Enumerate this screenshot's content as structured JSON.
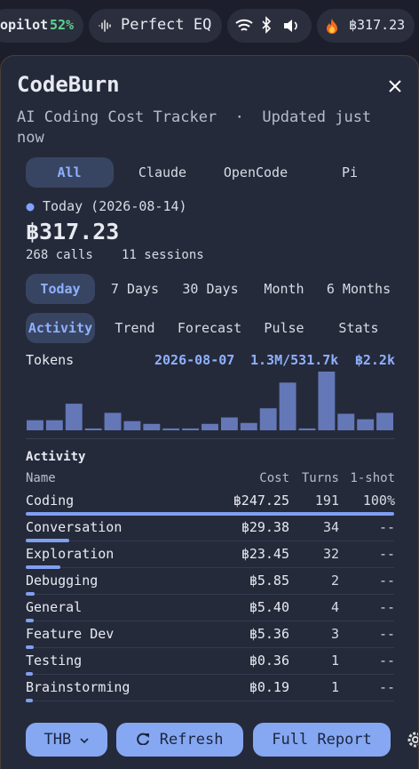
{
  "status_bar": {
    "app": "opilot",
    "app_percent": "52%",
    "eq": "Perfect EQ",
    "spend": "฿317.23"
  },
  "panel": {
    "title": "CodeBurn",
    "subtitle": "AI Coding Cost Tracker  ·  Updated just now",
    "providers": [
      "All",
      "Claude",
      "OpenCode",
      "Pi"
    ],
    "selected_provider": 0,
    "day": "Today (2026-08-14)",
    "total": "฿317.23",
    "calls": "268 calls",
    "sessions": "11 sessions",
    "periods": [
      "Today",
      "7 Days",
      "30 Days",
      "Month",
      "6 Months"
    ],
    "selected_period": 0,
    "views": [
      "Activity",
      "Trend",
      "Forecast",
      "Pulse",
      "Stats"
    ],
    "selected_view": 0,
    "tokens": {
      "label": "Tokens",
      "date": "2026-08-07",
      "count": "1.3M/531.7k",
      "cost": "฿2.2k",
      "bars": [
        11,
        11,
        29,
        2,
        19,
        10,
        7,
        2,
        2,
        7,
        14,
        8,
        24,
        52,
        2,
        64,
        18,
        12,
        19
      ],
      "color": "#6478b8"
    },
    "activity": {
      "title": "Activity",
      "columns": [
        "Name",
        "Cost",
        "Turns",
        "1-shot"
      ],
      "rows": [
        {
          "name": "Coding",
          "cost": "฿247.25",
          "cost_value": 247.25,
          "turns": 191,
          "one_shot": "100%"
        },
        {
          "name": "Conversation",
          "cost": "฿29.38",
          "cost_value": 29.38,
          "turns": 34,
          "one_shot": "--"
        },
        {
          "name": "Exploration",
          "cost": "฿23.45",
          "cost_value": 23.45,
          "turns": 32,
          "one_shot": "--"
        },
        {
          "name": "Debugging",
          "cost": "฿5.85",
          "cost_value": 5.85,
          "turns": 2,
          "one_shot": "--"
        },
        {
          "name": "General",
          "cost": "฿5.40",
          "cost_value": 5.4,
          "turns": 4,
          "one_shot": "--"
        },
        {
          "name": "Feature Dev",
          "cost": "฿5.36",
          "cost_value": 5.36,
          "turns": 3,
          "one_shot": "--"
        },
        {
          "name": "Testing",
          "cost": "฿0.36",
          "cost_value": 0.36,
          "turns": 1,
          "one_shot": "--"
        },
        {
          "name": "Brainstorming",
          "cost": "฿0.19",
          "cost_value": 0.19,
          "turns": 1,
          "one_shot": "--"
        }
      ],
      "bar_color": "#7f9ff0"
    },
    "buttons": {
      "currency": "THB",
      "refresh": "Refresh",
      "report": "Full Report"
    }
  }
}
